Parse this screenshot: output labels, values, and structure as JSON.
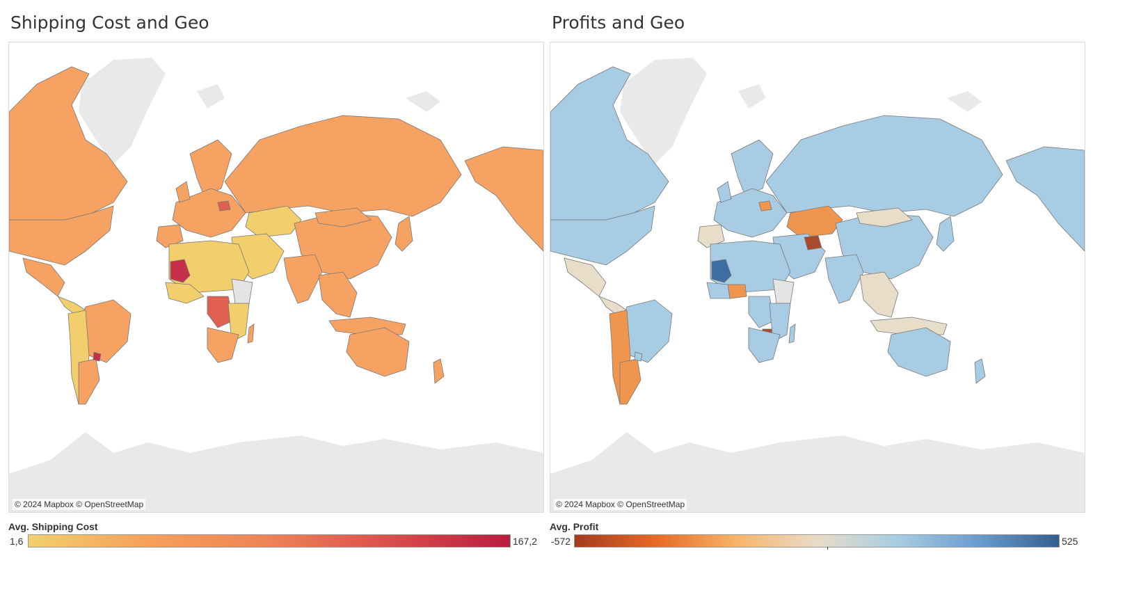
{
  "maps": [
    {
      "title": "Shipping Cost and Geo",
      "attribution": "© 2024 Mapbox © OpenStreetMap",
      "legend": {
        "title": "Avg. Shipping Cost",
        "min": "1,6",
        "max": "167,2",
        "palette": "orange-red-sequential",
        "colors": [
          "#f2cf6c",
          "#f6a05a",
          "#ee8356",
          "#d94f4c",
          "#b71d3f"
        ]
      },
      "land_color": "#f6a263",
      "highlight_colors": {
        "high": "#c6304a",
        "mid": "#e0604f",
        "low": "#f2cf6c",
        "missing": "#e4e4e4"
      }
    },
    {
      "title": "Profits and Geo",
      "attribution": "© 2024 Mapbox © OpenStreetMap",
      "legend": {
        "title": "Avg. Profit",
        "min": "-572",
        "max": "525",
        "palette": "orange-blue-diverging",
        "colors": [
          "#a33a20",
          "#e66a24",
          "#f8b469",
          "#e9dcc8",
          "#a6cde3",
          "#6b9ccf",
          "#335f8f"
        ]
      },
      "land_color": "#a8cce3",
      "highlight_colors": {
        "negative": "#f0954e",
        "strong_negative": "#a94a2e",
        "strong_positive": "#3d6ea3",
        "neutral": "#e8ddc9",
        "missing": "#e4e4e4"
      }
    }
  ]
}
